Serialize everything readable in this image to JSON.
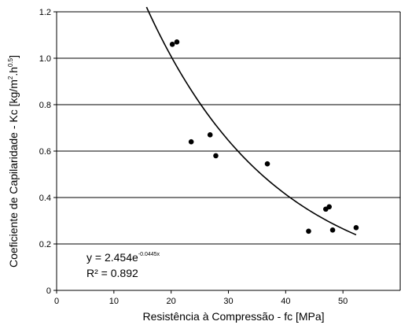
{
  "chart_data": {
    "type": "scatter",
    "xlabel": "Resistência à Compressão - fc [MPa]",
    "ylabel_main": "Coeficiente de Capilaridade - Kc [kg/m",
    "ylabel_sup1": "2",
    "ylabel_mid": ".h",
    "ylabel_sup2": "0.5",
    "ylabel_end": "]",
    "xlim": [
      0,
      60
    ],
    "ylim": [
      0,
      1.2
    ],
    "xticks": [
      0,
      10,
      20,
      30,
      40,
      50
    ],
    "yticks": [
      0,
      0.2,
      0.4,
      0.6,
      0.8,
      1.0,
      1.2
    ],
    "ytick_labels": [
      "0",
      "0.2",
      "0.4",
      "0.6",
      "0.8",
      "1.0",
      "1.2"
    ],
    "grid": "horizontal",
    "points": [
      {
        "x": 20.2,
        "y": 1.06
      },
      {
        "x": 21.0,
        "y": 1.07
      },
      {
        "x": 23.5,
        "y": 0.64
      },
      {
        "x": 26.8,
        "y": 0.67
      },
      {
        "x": 27.8,
        "y": 0.58
      },
      {
        "x": 36.8,
        "y": 0.545
      },
      {
        "x": 44.0,
        "y": 0.255
      },
      {
        "x": 47.0,
        "y": 0.35
      },
      {
        "x": 47.6,
        "y": 0.36
      },
      {
        "x": 48.2,
        "y": 0.26
      },
      {
        "x": 52.3,
        "y": 0.27
      }
    ],
    "trendline": {
      "type": "exponential",
      "a": 2.454,
      "b": -0.0445,
      "x_range": [
        15.7,
        52.3
      ]
    },
    "equation": {
      "line1_prefix": "y = 2.454e",
      "line1_exponent": "-0.0445x",
      "line2_prefix": "R² = 0.892"
    }
  }
}
